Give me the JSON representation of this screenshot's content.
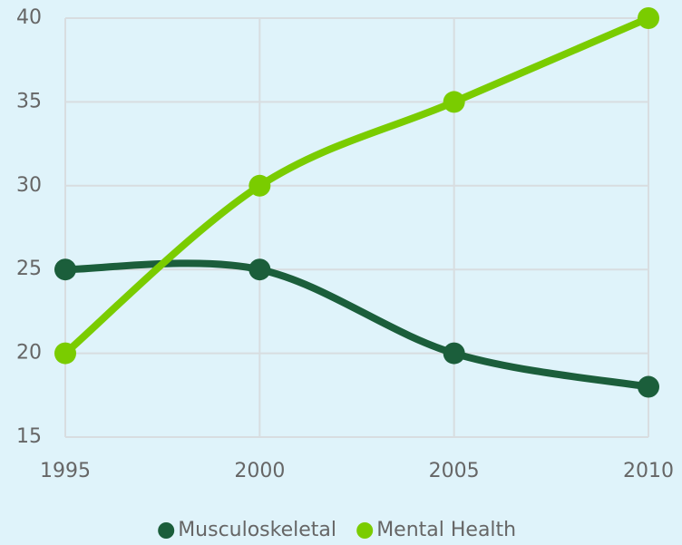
{
  "chart_data": {
    "type": "line",
    "x": [
      1995,
      2000,
      2005,
      2010
    ],
    "series": [
      {
        "name": "Musculoskeletal",
        "color": "#1b5e3b",
        "values": [
          25,
          25,
          20,
          18
        ]
      },
      {
        "name": "Mental Health",
        "color": "#7acc00",
        "values": [
          20,
          30,
          35,
          40
        ]
      }
    ],
    "xlim": [
      1995,
      2010
    ],
    "xticks": [
      1995,
      2000,
      2005,
      2010
    ],
    "ylim": [
      15,
      40
    ],
    "yticks": [
      15,
      20,
      25,
      30,
      35,
      40
    ],
    "grid": true,
    "legend": "bottom",
    "smooth": true
  }
}
